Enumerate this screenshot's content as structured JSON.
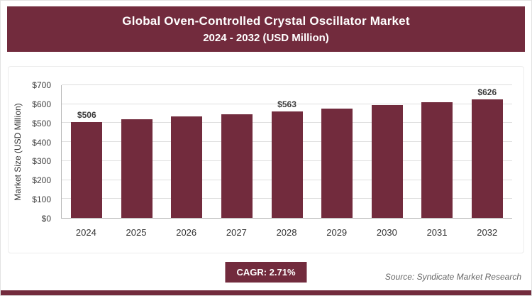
{
  "colors": {
    "accent": "#722b3d",
    "gridline": "#dedede",
    "axis": "#b8b8b8"
  },
  "header": {
    "title_line1": "Global Oven-Controlled Crystal Oscillator Market",
    "title_line2": "2024 - 2032 (USD Million)"
  },
  "chart_data": {
    "type": "bar",
    "categories": [
      "2024",
      "2025",
      "2026",
      "2027",
      "2028",
      "2029",
      "2030",
      "2031",
      "2032"
    ],
    "values": [
      506,
      520,
      534,
      548,
      563,
      578,
      594,
      610,
      626
    ],
    "data_labels": [
      "$506",
      "",
      "",
      "",
      "$563",
      "",
      "",
      "",
      "$626"
    ],
    "title": "Global Oven-Controlled Crystal Oscillator Market 2024 - 2032 (USD Million)",
    "xlabel": "",
    "ylabel": "Market Size (USD Million)",
    "ylim": [
      0,
      700
    ],
    "ytick_step": 100,
    "ytick_prefix": "$",
    "grid": true,
    "legend": "none",
    "bar_color": "#722b3d"
  },
  "footer": {
    "cagr_label": "CAGR: 2.71%",
    "source": "Source: Syndicate Market Research"
  }
}
